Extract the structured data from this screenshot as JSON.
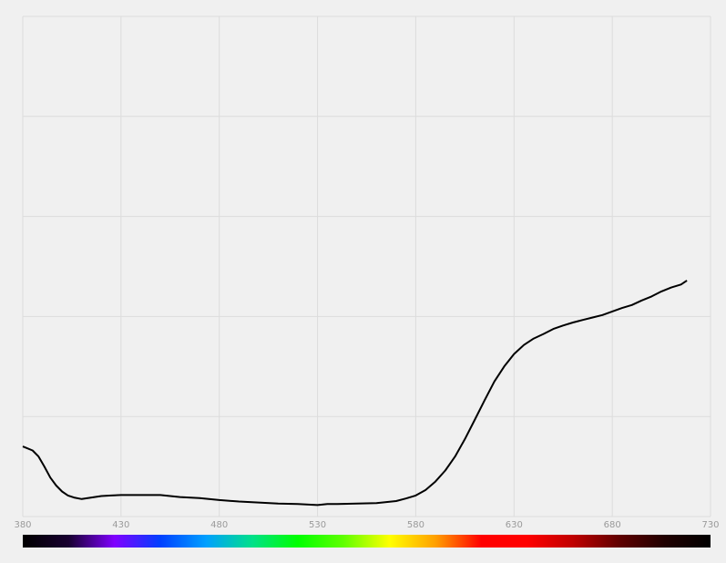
{
  "chart_data": {
    "type": "line",
    "title": "",
    "xlabel": "",
    "ylabel": "",
    "xlim": [
      380,
      730
    ],
    "ylim": [
      0,
      100
    ],
    "grid": true,
    "x_ticks": [
      380,
      430,
      480,
      530,
      580,
      630,
      680,
      730
    ],
    "x_tick_labels": [
      "380",
      "430",
      "480",
      "530",
      "580",
      "630",
      "680",
      "730"
    ],
    "y_gridlines": [
      0,
      20,
      40,
      60,
      80,
      100
    ],
    "series": [
      {
        "x": [
          380,
          382,
          385,
          388,
          391,
          394,
          397,
          400,
          403,
          406,
          410,
          415,
          420,
          425,
          430,
          440,
          450,
          455,
          460,
          470,
          480,
          490,
          500,
          510,
          520,
          530,
          535,
          540,
          550,
          560,
          570,
          575,
          580,
          585,
          590,
          595,
          600,
          605,
          610,
          615,
          620,
          625,
          630,
          635,
          640,
          645,
          650,
          655,
          660,
          665,
          670,
          675,
          680,
          685,
          690,
          695,
          700,
          705,
          710,
          715,
          718
        ],
        "y": [
          14,
          13.7,
          13.2,
          12,
          10,
          7.8,
          6.2,
          5,
          4.2,
          3.8,
          3.5,
          3.8,
          4.1,
          4.2,
          4.3,
          4.3,
          4.3,
          4.1,
          3.9,
          3.7,
          3.3,
          3.0,
          2.8,
          2.6,
          2.5,
          2.3,
          2.5,
          2.5,
          2.6,
          2.7,
          3.1,
          3.6,
          4.2,
          5.3,
          7,
          9.2,
          12,
          15.5,
          19.3,
          23.2,
          27,
          30,
          32.5,
          34.3,
          35.6,
          36.5,
          37.5,
          38.2,
          38.8,
          39.3,
          39.8,
          40.3,
          41,
          41.7,
          42.3,
          43.2,
          44,
          45,
          45.8,
          46.4,
          47.2
        ]
      }
    ],
    "line_color": "#000000",
    "spectrum_colors": [
      "#000000",
      "#180030",
      "#8000ff",
      "#0040ff",
      "#00a0ff",
      "#00e08a",
      "#00ff00",
      "#60ff00",
      "#ffff00",
      "#ffa000",
      "#ff0000",
      "#ff0000",
      "#c00000",
      "#600000",
      "#200000",
      "#000000"
    ]
  }
}
